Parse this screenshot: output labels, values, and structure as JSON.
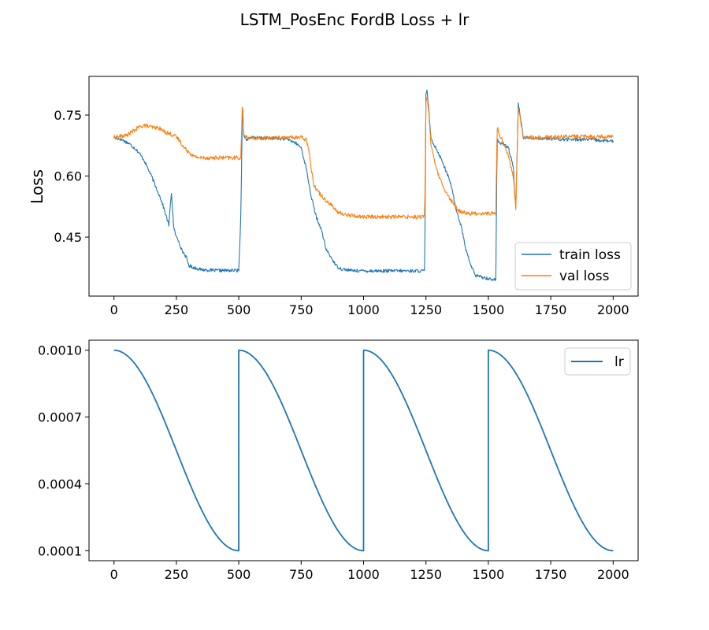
{
  "figure": {
    "title": "LSTM_PosEnc FordB Loss + lr"
  },
  "chart_data": [
    {
      "type": "line",
      "ylabel": "Loss",
      "xlabel": "",
      "xlim": [
        -100,
        2100
      ],
      "ylim": [
        0.305,
        0.845
      ],
      "xticks": [
        0,
        250,
        500,
        750,
        1000,
        1250,
        1500,
        1750,
        2000
      ],
      "yticks": [
        0.45,
        0.6,
        0.75
      ],
      "ytick_labels": [
        "0.45",
        "0.60",
        "0.75"
      ],
      "legend_position": "lower-right",
      "series": [
        {
          "name": "train loss",
          "color": "#1f77b4",
          "x": [
            0,
            30,
            60,
            90,
            120,
            150,
            170,
            190,
            210,
            220,
            230,
            240,
            250,
            260,
            270,
            280,
            290,
            300,
            320,
            350,
            400,
            450,
            500,
            508,
            515,
            520,
            530,
            560,
            600,
            650,
            700,
            730,
            750,
            770,
            790,
            810,
            830,
            850,
            870,
            890,
            910,
            950,
            1000,
            1100,
            1200,
            1245,
            1250,
            1255,
            1262,
            1270,
            1290,
            1320,
            1350,
            1370,
            1390,
            1410,
            1430,
            1450,
            1500,
            1530,
            1535,
            1545,
            1560,
            1580,
            1600,
            1610,
            1620,
            1640,
            1700,
            1800,
            1900,
            2000
          ],
          "values": [
            0.695,
            0.69,
            0.68,
            0.665,
            0.64,
            0.6,
            0.57,
            0.54,
            0.5,
            0.48,
            0.56,
            0.47,
            0.45,
            0.44,
            0.42,
            0.41,
            0.4,
            0.38,
            0.375,
            0.37,
            0.368,
            0.368,
            0.368,
            0.5,
            0.78,
            0.7,
            0.69,
            0.695,
            0.693,
            0.693,
            0.69,
            0.68,
            0.67,
            0.62,
            0.55,
            0.5,
            0.47,
            0.42,
            0.4,
            0.38,
            0.372,
            0.368,
            0.367,
            0.367,
            0.367,
            0.367,
            0.8,
            0.81,
            0.76,
            0.69,
            0.67,
            0.63,
            0.58,
            0.52,
            0.48,
            0.42,
            0.38,
            0.355,
            0.348,
            0.345,
            0.69,
            0.68,
            0.68,
            0.67,
            0.62,
            0.52,
            0.78,
            0.695,
            0.693,
            0.69,
            0.69,
            0.685
          ],
          "noise": 0.004
        },
        {
          "name": "val loss",
          "color": "#ff7f0e",
          "x": [
            0,
            50,
            100,
            120,
            150,
            180,
            200,
            220,
            240,
            260,
            280,
            300,
            320,
            350,
            400,
            450,
            500,
            508,
            515,
            520,
            530,
            560,
            600,
            650,
            700,
            750,
            770,
            780,
            790,
            800,
            820,
            850,
            870,
            890,
            900,
            930,
            960,
            1000,
            1100,
            1200,
            1245,
            1250,
            1255,
            1262,
            1270,
            1290,
            1320,
            1350,
            1380,
            1420,
            1500,
            1530,
            1535,
            1545,
            1560,
            1580,
            1600,
            1610,
            1620,
            1640,
            1700,
            1800,
            1900,
            2000
          ],
          "values": [
            0.695,
            0.7,
            0.72,
            0.725,
            0.72,
            0.718,
            0.71,
            0.705,
            0.7,
            0.69,
            0.67,
            0.66,
            0.648,
            0.645,
            0.645,
            0.645,
            0.645,
            0.645,
            0.785,
            0.7,
            0.695,
            0.693,
            0.693,
            0.694,
            0.695,
            0.695,
            0.69,
            0.67,
            0.62,
            0.58,
            0.56,
            0.54,
            0.53,
            0.515,
            0.51,
            0.505,
            0.502,
            0.5,
            0.5,
            0.5,
            0.5,
            0.78,
            0.8,
            0.75,
            0.68,
            0.62,
            0.57,
            0.54,
            0.515,
            0.508,
            0.508,
            0.508,
            0.72,
            0.7,
            0.685,
            0.65,
            0.6,
            0.52,
            0.77,
            0.695,
            0.695,
            0.697,
            0.697,
            0.697
          ],
          "noise": 0.005
        }
      ]
    },
    {
      "type": "line",
      "ylabel": "",
      "xlabel": "",
      "xlim": [
        -100,
        2100
      ],
      "ylim": [
        5.5e-05,
        0.001045
      ],
      "xticks": [
        0,
        250,
        500,
        750,
        1000,
        1250,
        1500,
        1750,
        2000
      ],
      "yticks": [
        0.0001,
        0.0004,
        0.0007,
        0.001
      ],
      "ytick_labels": [
        "0.0001",
        "0.0004",
        "0.0007",
        "0.0010"
      ],
      "legend_position": "top-right",
      "series": [
        {
          "name": "lr",
          "color": "#1f77b4",
          "schedule": "cosine restarts",
          "period": 500,
          "max": 0.001,
          "min": 0.0001,
          "x_range": [
            0,
            2000
          ]
        }
      ]
    }
  ]
}
